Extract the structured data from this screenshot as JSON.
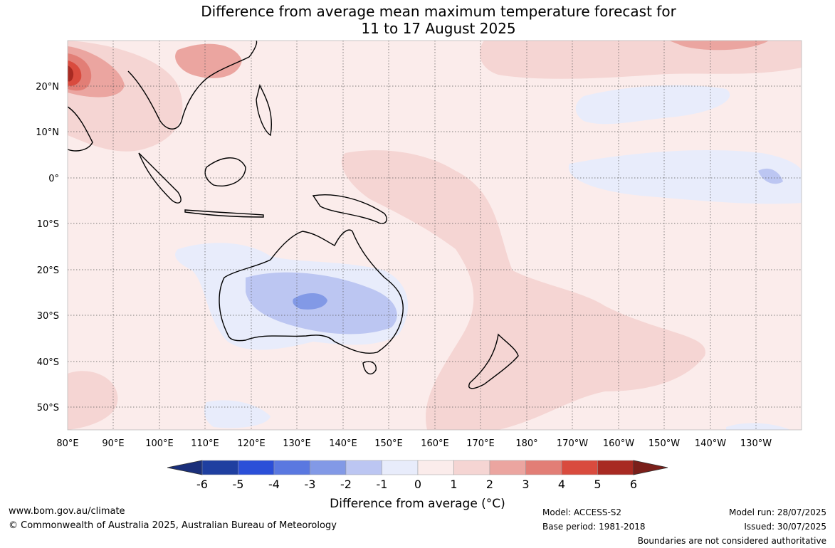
{
  "title": {
    "line1": "Difference from average mean maximum temperature forecast for",
    "line2": "11 to 17 August 2025"
  },
  "map": {
    "lat_labels": [
      "20°N",
      "10°N",
      "0°",
      "10°S",
      "20°S",
      "30°S",
      "40°S",
      "50°S"
    ],
    "lon_labels": [
      "80°E",
      "90°E",
      "100°E",
      "110°E",
      "120°E",
      "130°E",
      "140°E",
      "150°E",
      "160°E",
      "170°E",
      "180°",
      "170°W",
      "160°W",
      "150°W",
      "140°W",
      "130°W"
    ]
  },
  "colorbar": {
    "tick_labels": [
      "-6",
      "-5",
      "-4",
      "-3",
      "-2",
      "-1",
      "0",
      "1",
      "2",
      "3",
      "4",
      "5",
      "6"
    ],
    "colors": [
      "#1f3fa0",
      "#2b4fd8",
      "#5a78e0",
      "#8299e6",
      "#bcc6f2",
      "#e8ecfb",
      "#fbeceb",
      "#f5d5d3",
      "#eba5a0",
      "#e27e76",
      "#d94b3e",
      "#a82a22"
    ],
    "under_color": "#1a2f7a",
    "over_color": "#7a1f1a",
    "label": "Difference from average (°C)"
  },
  "footer": {
    "url": "www.bom.gov.au/climate",
    "copyright": "© Commonwealth of Australia 2025, Australian Bureau of Meteorology",
    "model": "Model: ACCESS-S2",
    "base_period": "Base period: 1981-2018",
    "model_run": "Model run: 28/07/2025",
    "issued": "Issued: 30/07/2025",
    "disclaimer": "Boundaries are not considered authoritative"
  }
}
